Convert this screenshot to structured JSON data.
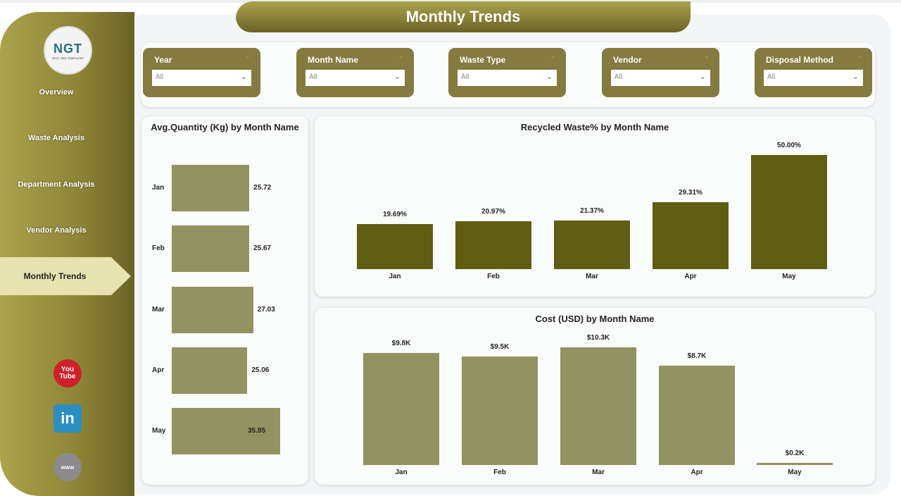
{
  "header": {
    "title": "Monthly Trends"
  },
  "logo": {
    "text": "NGT",
    "tagline": "NEXT GEN TEMPLATES"
  },
  "sidebar": {
    "items": [
      {
        "label": "Overview"
      },
      {
        "label": "Waste Analysis"
      },
      {
        "label": "Department Analysis"
      },
      {
        "label": "Vendor Analysis"
      },
      {
        "label": "Monthly Trends",
        "active": true
      }
    ],
    "social": [
      {
        "icon": "youtube-icon",
        "text": "You Tube"
      },
      {
        "icon": "linkedin-icon",
        "text": "in"
      },
      {
        "icon": "globe-icon",
        "text": "www"
      }
    ]
  },
  "filters": [
    {
      "label": "Year",
      "value": "All"
    },
    {
      "label": "Month Name",
      "value": "All"
    },
    {
      "label": "Waste Type",
      "value": "All"
    },
    {
      "label": "Vendor",
      "value": "All"
    },
    {
      "label": "Disposal Method",
      "value": "All"
    }
  ],
  "colors": {
    "dark_bar": "#5f5e12",
    "light_bar": "#939261",
    "accent": "#857a40",
    "active_nav": "#e6e3b1"
  },
  "chart_data": [
    {
      "type": "bar",
      "orientation": "horizontal",
      "title": "Avg.Quantity (Kg) by Month Name",
      "categories": [
        "Jan",
        "Feb",
        "Mar",
        "Apr",
        "May"
      ],
      "values": [
        25.72,
        25.67,
        27.03,
        25.06,
        35.95
      ],
      "labels": [
        "25.72",
        "25.67",
        "27.03",
        "25.06",
        "35.95"
      ]
    },
    {
      "type": "bar",
      "title": "Recycled Waste% by Month Name",
      "categories": [
        "Jan",
        "Feb",
        "Mar",
        "Apr",
        "May"
      ],
      "values": [
        19.69,
        20.97,
        21.37,
        29.31,
        50.0
      ],
      "labels": [
        "19.69%",
        "20.97%",
        "21.37%",
        "29.31%",
        "50.00%"
      ]
    },
    {
      "type": "bar",
      "title": "Cost (USD) by Month Name",
      "categories": [
        "Jan",
        "Feb",
        "Mar",
        "Apr",
        "May"
      ],
      "values": [
        9.8,
        9.5,
        10.3,
        8.7,
        0.2
      ],
      "labels": [
        "$9.8K",
        "$9.5K",
        "$10.3K",
        "$8.7K",
        "$0.2K"
      ]
    }
  ]
}
